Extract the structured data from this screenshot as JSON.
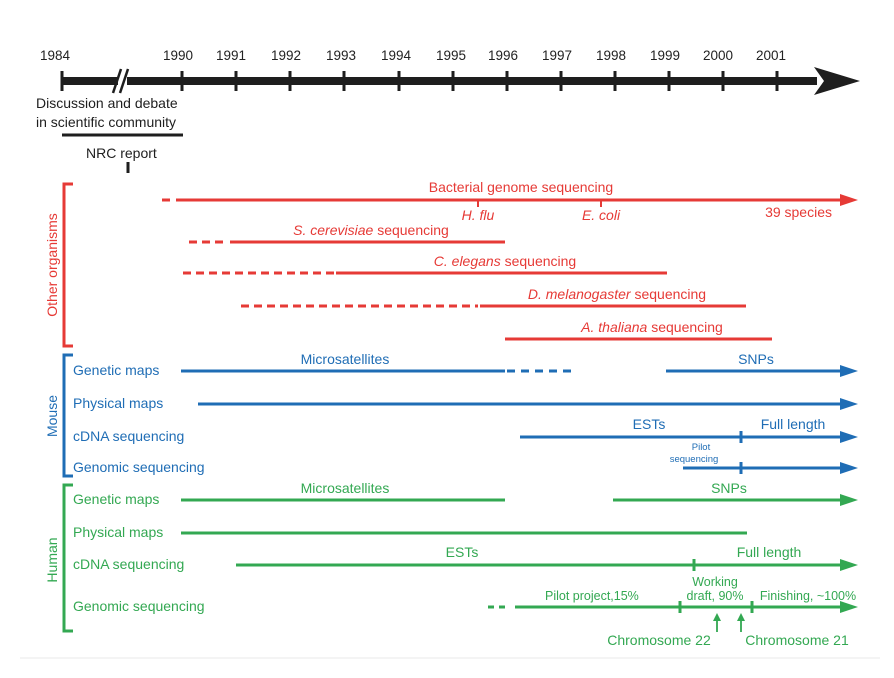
{
  "timeline": {
    "years": [
      "1984",
      "1990",
      "1991",
      "1992",
      "1993",
      "1994",
      "1995",
      "1996",
      "1997",
      "1998",
      "1999",
      "2000",
      "2001"
    ],
    "discussion_line1": "Discussion and debate",
    "discussion_line2": "in scientific community",
    "nrc_report": "NRC report"
  },
  "groups": {
    "other": "Other organisms",
    "mouse": "Mouse",
    "human": "Human"
  },
  "colors": {
    "red": "#e63a36",
    "blue": "#1f6db5",
    "green": "#33a852",
    "black": "#1e1e1e"
  },
  "other": {
    "bacterial": "Bacterial genome sequencing",
    "hflu": "H. flu",
    "ecoli": "E. coli",
    "species": "39 species",
    "scer_italic": "S. cerevisiae",
    "celegans_italic": "C. elegans",
    "dmel_italic": "D. melanogaster",
    "athal_italic": "A. thaliana",
    "seq_word": "sequencing"
  },
  "mouse": {
    "genetic_maps": "Genetic maps",
    "microsatellites": "Microsatellites",
    "snps": "SNPs",
    "physical_maps": "Physical maps",
    "cdna": "cDNA sequencing",
    "ests": "ESTs",
    "full_length": "Full length",
    "genomic": "Genomic sequencing",
    "pilot1": "Pilot",
    "pilot2": "sequencing"
  },
  "human": {
    "genetic_maps": "Genetic maps",
    "microsatellites": "Microsatellites",
    "snps": "SNPs",
    "physical_maps": "Physical maps",
    "cdna": "cDNA sequencing",
    "ests": "ESTs",
    "full_length": "Full length",
    "genomic": "Genomic sequencing",
    "pilot_project": "Pilot project,15%",
    "working1": "Working",
    "working2": "draft, 90%",
    "finishing": "Finishing, ~100%",
    "chr22": "Chromosome 22",
    "chr21": "Chromosome 21"
  }
}
